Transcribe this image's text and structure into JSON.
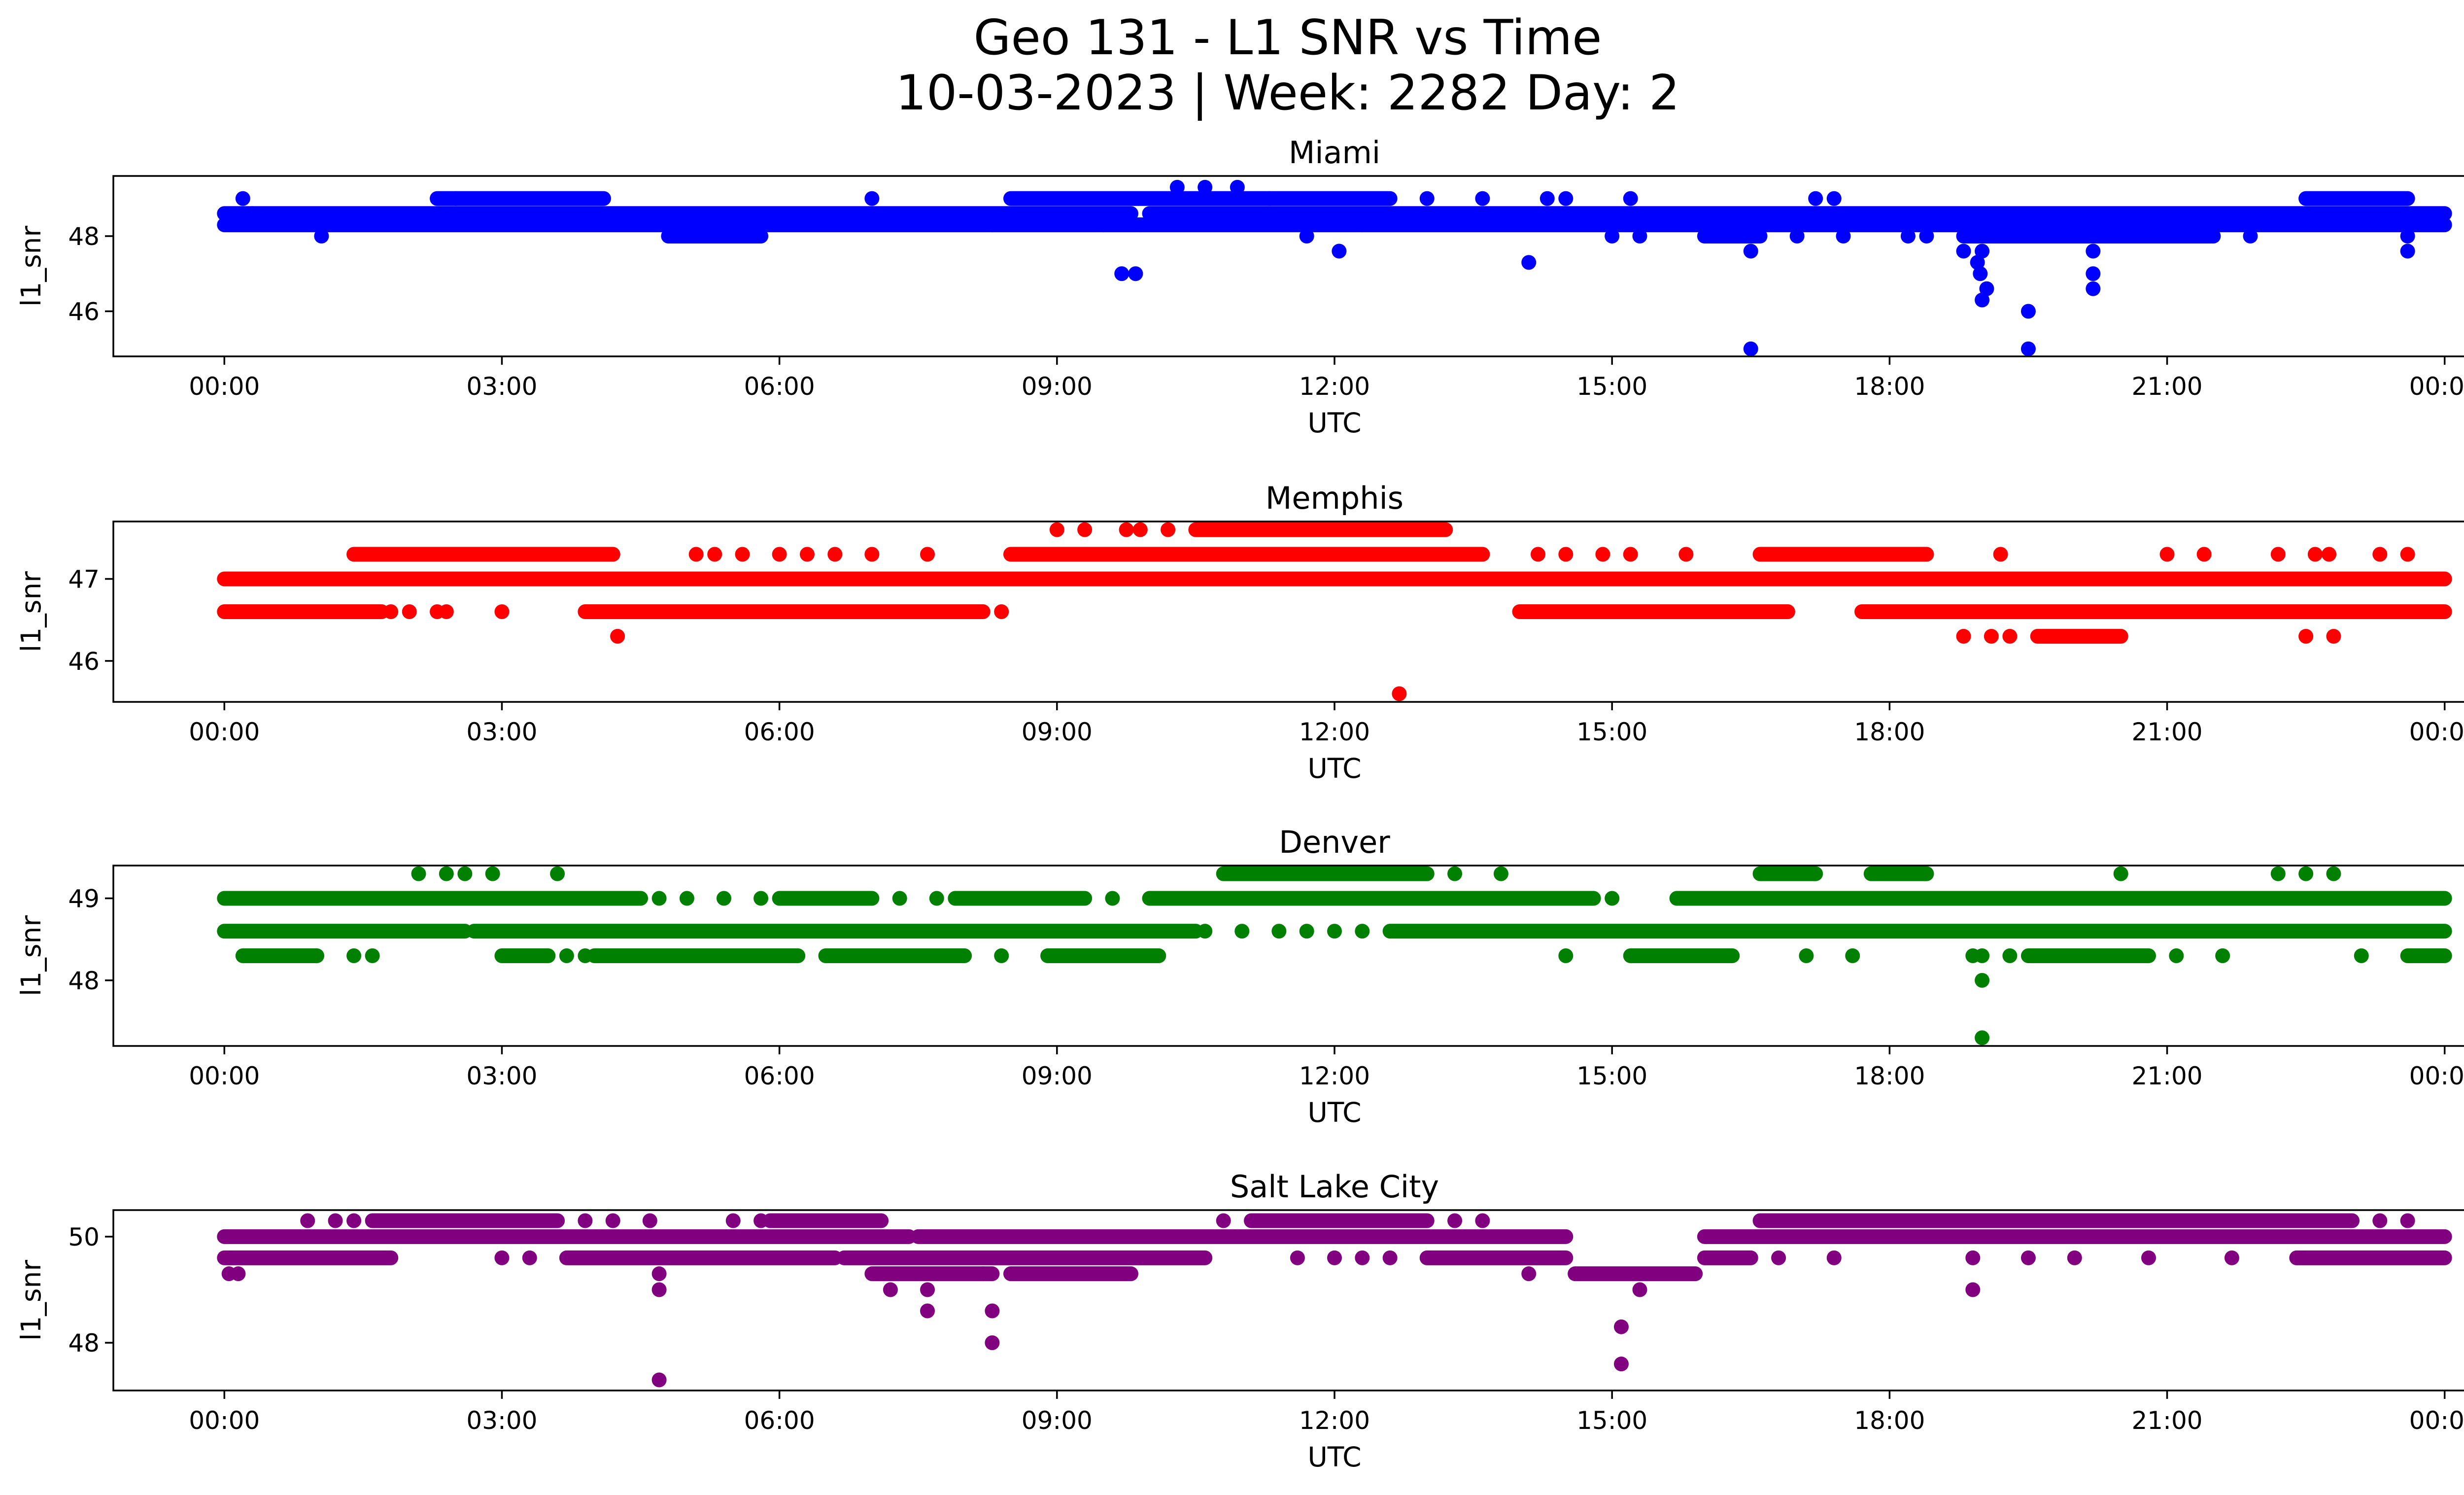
{
  "chart_data": {
    "type": "scatter",
    "title_line1": "Geo 131 - L1 SNR vs Time",
    "title_line2": "10-03-2023 | Week: 2282 Day: 2",
    "x_tick_labels": [
      "00:00",
      "03:00",
      "06:00",
      "09:00",
      "12:00",
      "15:00",
      "18:00",
      "21:00",
      "00:00"
    ],
    "xlim_hours": [
      -1.2,
      25.2
    ],
    "grid": false,
    "panels": [
      {
        "name": "Miami",
        "color": "#0000ff",
        "xlabel": "UTC",
        "ylabel": "l1_snr",
        "ylim": [
          44.8,
          49.6
        ],
        "yticks": [
          46,
          48
        ],
        "levels": [
          48.3,
          48.6,
          49.0,
          49.3
        ],
        "segments": [
          [
            48.3,
            0,
            24
          ],
          [
            48.6,
            0,
            9.8
          ],
          [
            48.6,
            10.0,
            24
          ],
          [
            49.0,
            2.3,
            4.1
          ],
          [
            49.0,
            8.5,
            12.6
          ],
          [
            49.0,
            22.5,
            23.6
          ],
          [
            48.0,
            4.8,
            5.8
          ],
          [
            48.0,
            16.0,
            16.6
          ],
          [
            48.0,
            18.8,
            20.5
          ],
          [
            48.0,
            20.5,
            21.5
          ]
        ],
        "points": [
          [
            0.2,
            49.0
          ],
          [
            0.3,
            48.6
          ],
          [
            1.05,
            48.0
          ],
          [
            2.5,
            49.0
          ],
          [
            7.0,
            49.0
          ],
          [
            8.3,
            48.3
          ],
          [
            9.5,
            48.3
          ],
          [
            9.7,
            47.0
          ],
          [
            9.85,
            47.0
          ],
          [
            9.9,
            48.3
          ],
          [
            10.3,
            49.3
          ],
          [
            10.6,
            49.3
          ],
          [
            10.95,
            49.3
          ],
          [
            11.3,
            49.0
          ],
          [
            11.7,
            48.0
          ],
          [
            12.05,
            47.6
          ],
          [
            12.3,
            48.3
          ],
          [
            13.0,
            49.0
          ],
          [
            13.6,
            49.0
          ],
          [
            14.1,
            47.3
          ],
          [
            14.3,
            49.0
          ],
          [
            14.5,
            49.0
          ],
          [
            15.0,
            48.0
          ],
          [
            15.2,
            49.0
          ],
          [
            15.3,
            48.0
          ],
          [
            16.5,
            47.6
          ],
          [
            16.5,
            45.0
          ],
          [
            17.0,
            48.0
          ],
          [
            17.2,
            49.0
          ],
          [
            17.4,
            49.0
          ],
          [
            17.5,
            48.0
          ],
          [
            18.2,
            48.0
          ],
          [
            18.4,
            48.0
          ],
          [
            18.8,
            47.6
          ],
          [
            18.95,
            47.3
          ],
          [
            18.98,
            47.0
          ],
          [
            19.0,
            47.6
          ],
          [
            19.0,
            46.3
          ],
          [
            19.05,
            46.6
          ],
          [
            19.5,
            46.0
          ],
          [
            19.5,
            45.0
          ],
          [
            20.2,
            47.6
          ],
          [
            20.2,
            47.0
          ],
          [
            20.2,
            46.6
          ],
          [
            21.9,
            48.0
          ],
          [
            23.6,
            48.0
          ],
          [
            23.6,
            47.6
          ]
        ]
      },
      {
        "name": "Memphis",
        "color": "#ff0000",
        "xlabel": "UTC",
        "ylabel": "l1_snr",
        "ylim": [
          45.5,
          47.7
        ],
        "yticks": [
          46,
          47
        ],
        "levels": [
          46.3,
          46.6,
          47.0,
          47.3,
          47.6
        ],
        "segments": [
          [
            47.0,
            0,
            24
          ],
          [
            46.6,
            0,
            1.7
          ],
          [
            46.6,
            3.9,
            8.2
          ],
          [
            46.6,
            14.0,
            16.9
          ],
          [
            46.6,
            17.7,
            24
          ],
          [
            47.3,
            1.4,
            4.2
          ],
          [
            47.3,
            8.5,
            13.6
          ],
          [
            47.3,
            16.6,
            18.4
          ],
          [
            47.6,
            10.5,
            13.2
          ],
          [
            46.3,
            19.6,
            20.5
          ]
        ],
        "points": [
          [
            1.8,
            46.6
          ],
          [
            2.0,
            46.6
          ],
          [
            2.3,
            46.6
          ],
          [
            2.4,
            46.6
          ],
          [
            3.0,
            46.6
          ],
          [
            4.25,
            46.3
          ],
          [
            5.1,
            47.3
          ],
          [
            5.3,
            47.3
          ],
          [
            5.6,
            47.3
          ],
          [
            6.0,
            47.3
          ],
          [
            6.3,
            47.3
          ],
          [
            6.6,
            47.3
          ],
          [
            7.0,
            47.3
          ],
          [
            7.6,
            47.3
          ],
          [
            8.4,
            46.6
          ],
          [
            9.0,
            47.6
          ],
          [
            9.3,
            47.6
          ],
          [
            9.75,
            47.6
          ],
          [
            9.9,
            47.6
          ],
          [
            10.2,
            47.6
          ],
          [
            10.1,
            47.0
          ],
          [
            10.6,
            47.0
          ],
          [
            11.3,
            47.0
          ],
          [
            11.5,
            47.0
          ],
          [
            11.9,
            47.0
          ],
          [
            12.2,
            47.0
          ],
          [
            12.65,
            47.0
          ],
          [
            12.7,
            45.6
          ],
          [
            14.2,
            47.3
          ],
          [
            14.5,
            47.3
          ],
          [
            14.9,
            47.3
          ],
          [
            15.2,
            47.3
          ],
          [
            15.8,
            47.3
          ],
          [
            18.8,
            46.3
          ],
          [
            19.1,
            46.3
          ],
          [
            19.2,
            47.3
          ],
          [
            19.3,
            46.3
          ],
          [
            21.0,
            47.3
          ],
          [
            21.4,
            47.3
          ],
          [
            22.2,
            47.3
          ],
          [
            22.5,
            46.3
          ],
          [
            22.6,
            47.3
          ],
          [
            22.75,
            47.3
          ],
          [
            22.8,
            46.3
          ],
          [
            23.3,
            47.3
          ],
          [
            23.6,
            47.3
          ]
        ]
      },
      {
        "name": "Denver",
        "color": "#008000",
        "xlabel": "UTC",
        "ylabel": "l1_snr",
        "ylim": [
          47.2,
          49.4
        ],
        "yticks": [
          48,
          49
        ],
        "levels": [
          48.3,
          48.6,
          49.0,
          49.3
        ],
        "segments": [
          [
            48.6,
            0,
            2.6
          ],
          [
            48.6,
            2.7,
            10.5
          ],
          [
            48.6,
            12.6,
            24
          ],
          [
            49.0,
            0,
            4.5
          ],
          [
            49.0,
            6.0,
            7.0
          ],
          [
            49.0,
            7.9,
            9.3
          ],
          [
            49.0,
            10.0,
            14.8
          ],
          [
            49.0,
            15.7,
            24
          ],
          [
            48.3,
            0.2,
            1.0
          ],
          [
            48.3,
            3.0,
            3.5
          ],
          [
            48.3,
            4.0,
            6.2
          ],
          [
            48.3,
            6.5,
            8.0
          ],
          [
            48.3,
            8.9,
            10.1
          ],
          [
            48.3,
            15.2,
            16.3
          ],
          [
            48.3,
            19.5,
            20.8
          ],
          [
            48.3,
            23.6,
            24
          ],
          [
            49.3,
            10.8,
            13.0
          ],
          [
            49.3,
            16.6,
            17.2
          ],
          [
            49.3,
            17.8,
            18.4
          ]
        ],
        "points": [
          [
            1.4,
            48.3
          ],
          [
            1.6,
            48.3
          ],
          [
            2.1,
            49.3
          ],
          [
            2.4,
            49.3
          ],
          [
            2.6,
            49.3
          ],
          [
            2.9,
            49.3
          ],
          [
            3.6,
            49.3
          ],
          [
            3.7,
            48.3
          ],
          [
            3.9,
            48.3
          ],
          [
            4.7,
            49.0
          ],
          [
            5.0,
            49.0
          ],
          [
            5.4,
            49.0
          ],
          [
            5.8,
            49.0
          ],
          [
            7.3,
            49.0
          ],
          [
            7.7,
            49.0
          ],
          [
            8.4,
            48.3
          ],
          [
            9.6,
            49.0
          ],
          [
            10.6,
            48.6
          ],
          [
            11.0,
            48.6
          ],
          [
            11.4,
            48.6
          ],
          [
            11.7,
            48.6
          ],
          [
            12.0,
            48.6
          ],
          [
            12.3,
            48.6
          ],
          [
            13.3,
            49.3
          ],
          [
            13.8,
            49.3
          ],
          [
            14.5,
            48.3
          ],
          [
            15.0,
            49.0
          ],
          [
            17.1,
            48.3
          ],
          [
            17.6,
            48.3
          ],
          [
            18.9,
            48.3
          ],
          [
            19.0,
            48.3
          ],
          [
            19.0,
            48.0
          ],
          [
            19.0,
            47.3
          ],
          [
            19.3,
            48.3
          ],
          [
            20.5,
            49.3
          ],
          [
            21.1,
            48.3
          ],
          [
            21.6,
            48.3
          ],
          [
            22.2,
            49.3
          ],
          [
            22.5,
            49.3
          ],
          [
            22.8,
            49.3
          ],
          [
            23.1,
            48.3
          ]
        ]
      },
      {
        "name": "Salt Lake City",
        "color": "#800080",
        "xlabel": "UTC",
        "ylabel": "l1_snr",
        "ylim": [
          47.1,
          50.5
        ],
        "yticks": [
          48,
          50
        ],
        "levels": [
          49.3,
          49.6,
          50.0,
          50.3
        ],
        "segments": [
          [
            50.0,
            0,
            7.4
          ],
          [
            50.0,
            7.5,
            14.5
          ],
          [
            50.0,
            16.0,
            24
          ],
          [
            49.6,
            0,
            1.8
          ],
          [
            49.6,
            3.7,
            6.6
          ],
          [
            49.6,
            6.7,
            10.6
          ],
          [
            49.6,
            13.0,
            14.5
          ],
          [
            49.6,
            16.0,
            16.5
          ],
          [
            49.6,
            22.4,
            24
          ],
          [
            50.3,
            1.6,
            3.6
          ],
          [
            50.3,
            5.9,
            7.1
          ],
          [
            50.3,
            11.1,
            13.0
          ],
          [
            50.3,
            16.6,
            23.0
          ],
          [
            49.3,
            7.0,
            8.3
          ],
          [
            49.3,
            8.5,
            9.8
          ],
          [
            49.3,
            14.6,
            15.9
          ]
        ],
        "points": [
          [
            0.05,
            49.3
          ],
          [
            0.15,
            49.3
          ],
          [
            0.9,
            50.3
          ],
          [
            1.2,
            50.3
          ],
          [
            1.4,
            50.3
          ],
          [
            3.0,
            49.6
          ],
          [
            3.3,
            49.6
          ],
          [
            3.9,
            50.3
          ],
          [
            4.2,
            50.3
          ],
          [
            4.6,
            50.3
          ],
          [
            4.7,
            49.3
          ],
          [
            4.7,
            49.0
          ],
          [
            4.7,
            47.3
          ],
          [
            5.5,
            50.3
          ],
          [
            5.8,
            50.3
          ],
          [
            7.2,
            49.0
          ],
          [
            7.6,
            49.0
          ],
          [
            7.6,
            48.6
          ],
          [
            8.3,
            48.6
          ],
          [
            8.3,
            48.0
          ],
          [
            8.2,
            49.3
          ],
          [
            10.8,
            50.3
          ],
          [
            11.6,
            49.6
          ],
          [
            12.0,
            49.6
          ],
          [
            12.3,
            49.6
          ],
          [
            12.6,
            49.6
          ],
          [
            13.3,
            50.3
          ],
          [
            13.6,
            50.3
          ],
          [
            14.1,
            49.3
          ],
          [
            15.1,
            48.3
          ],
          [
            15.1,
            47.6
          ],
          [
            15.3,
            49.0
          ],
          [
            16.8,
            49.6
          ],
          [
            17.4,
            49.6
          ],
          [
            18.9,
            49.6
          ],
          [
            18.9,
            49.0
          ],
          [
            19.5,
            49.6
          ],
          [
            20.0,
            49.6
          ],
          [
            20.8,
            49.6
          ],
          [
            21.7,
            49.6
          ],
          [
            23.3,
            50.3
          ],
          [
            23.6,
            50.3
          ]
        ]
      }
    ]
  }
}
